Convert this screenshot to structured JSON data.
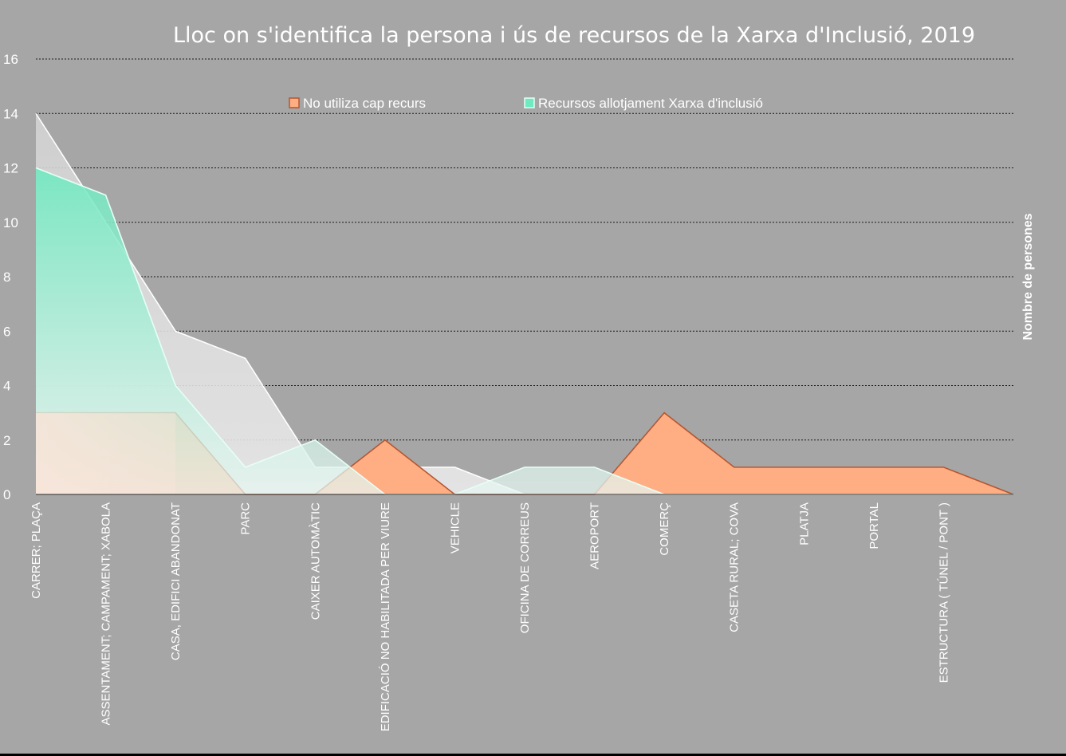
{
  "chart_data": {
    "type": "area",
    "title": "Lloc on s'identifica la persona i ús de recursos de la Xarxa d'Inclusió, 2019",
    "ylabel": "Nombre de persones",
    "xlabel": "",
    "ylim": [
      0,
      16
    ],
    "yticks": [
      0,
      2,
      4,
      6,
      8,
      10,
      12,
      14,
      16
    ],
    "grid": true,
    "legend_position": "top",
    "categories": [
      "CARRER; PLAÇA",
      "ASSENTAMENT; CAMPAMENT; XABOLA",
      "CASA, EDIFICI ABANDONAT",
      "PARC",
      "CAIXER AUTOMÀTIC",
      "EDIFICACIÓ NO HABILITADA PER VIURE",
      "VEHICLE",
      "OFICINA DE CORREUS",
      "AEROPORT",
      "COMERÇ",
      "CASETA RURAL; COVA",
      "PLATJA",
      "PORTAL",
      "ESTRUCTURA ( TÚNEL / PONT )",
      ""
    ],
    "series": [
      {
        "name": "",
        "color": "#d9d9d9",
        "values": [
          14,
          10,
          6,
          5,
          1,
          1,
          1,
          0,
          0,
          0,
          0,
          0,
          0,
          0,
          0
        ]
      },
      {
        "name": "No utiliza cap recurs",
        "color": "#ffae84",
        "values": [
          3,
          3,
          3,
          0,
          0,
          2,
          0,
          0,
          0,
          3,
          1,
          1,
          1,
          1,
          0
        ]
      },
      {
        "name": "Recursos allotjament Xarxa d'inclusió",
        "color": "#6ee9c0",
        "values": [
          12,
          11,
          4,
          1,
          2,
          0,
          0,
          1,
          1,
          0,
          0,
          0,
          0,
          0,
          0
        ]
      }
    ]
  }
}
